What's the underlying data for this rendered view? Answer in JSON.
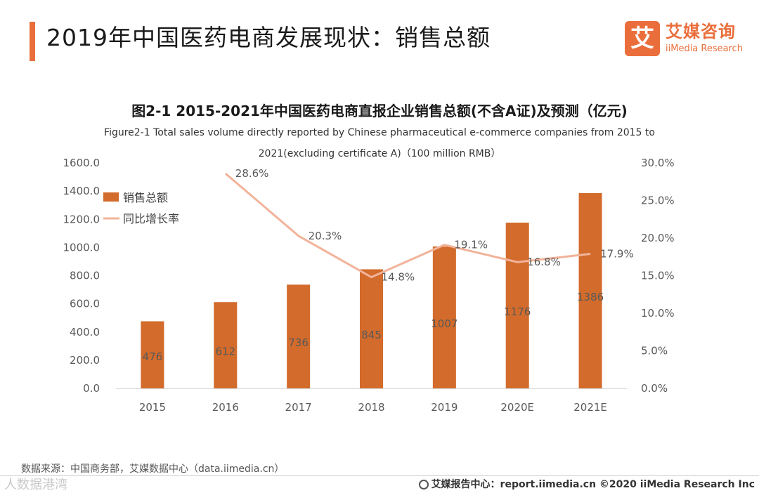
{
  "header": {
    "title": "2019年中国医药电商发展现状：销售总额",
    "logo_mark": "艾",
    "logo_cn": "艾媒咨询",
    "logo_en": "iiMedia Research"
  },
  "chart_data": {
    "type": "bar",
    "title": "图2-1 2015-2021年中国医药电商直报企业销售总额(不含A证)及预测（亿元)",
    "subtitle_line1": "Figure2-1 Total sales volume directly reported by Chinese pharmaceutical e-commerce companies from 2015 to",
    "subtitle_line2": "2021(excluding certificate A)（100 million RMB）",
    "categories": [
      "2015",
      "2016",
      "2017",
      "2018",
      "2019",
      "2020E",
      "2021E"
    ],
    "series": [
      {
        "name": "销售总额",
        "type": "bar",
        "axis": "left",
        "color": "#d26b2b",
        "values": [
          476,
          612,
          736,
          845,
          1007,
          1176,
          1386
        ],
        "labels": [
          "476",
          "612",
          "736",
          "845",
          "1007",
          "1176",
          "1386"
        ]
      },
      {
        "name": "同比增长率",
        "type": "line",
        "axis": "right",
        "color": "#f2b39a",
        "values": [
          null,
          28.6,
          20.3,
          14.8,
          19.1,
          16.8,
          17.9
        ],
        "labels": [
          "",
          "28.6%",
          "20.3%",
          "14.8%",
          "19.1%",
          "16.8%",
          "17.9%"
        ]
      }
    ],
    "y_left": {
      "min": 0,
      "max": 1600,
      "ticks": [
        "0.0",
        "200.0",
        "400.0",
        "600.0",
        "800.0",
        "1000.0",
        "1200.0",
        "1400.0",
        "1600.0"
      ]
    },
    "y_right": {
      "min": 0,
      "max": 30,
      "ticks": [
        "0.0%",
        "5.0%",
        "10.0%",
        "15.0%",
        "20.0%",
        "25.0%",
        "30.0%"
      ]
    },
    "legend_position": "top-left",
    "grid": false
  },
  "footer": {
    "source": "数据来源：中国商务部，艾媒数据中心（data.iimedia.cn）",
    "credit": "艾媒报告中心：report.iimedia.cn  ©2020  iiMedia Research  Inc",
    "watermark": "人数据港湾"
  }
}
